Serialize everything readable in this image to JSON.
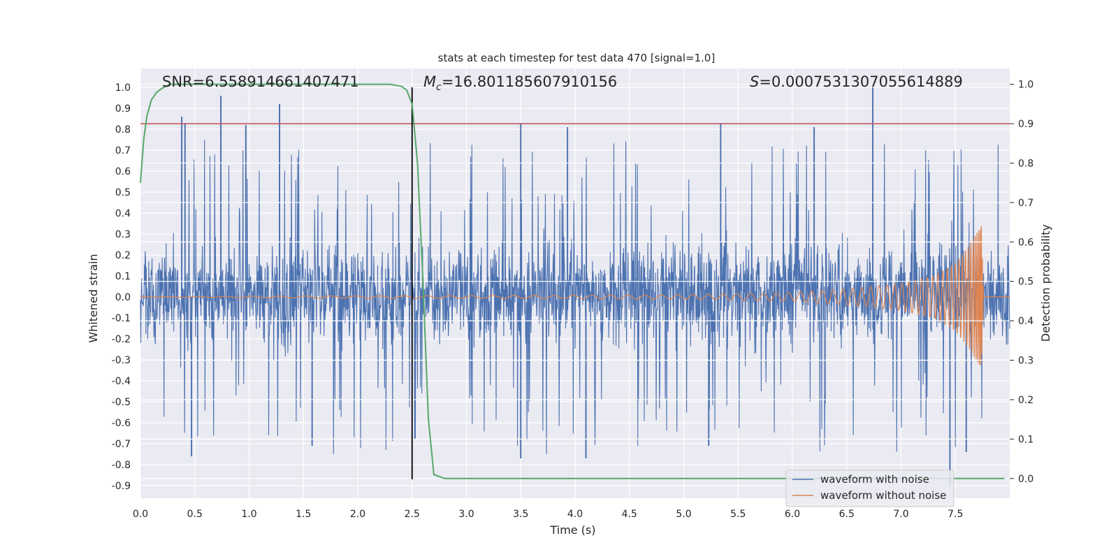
{
  "chart_data": {
    "type": "line",
    "title": "stats at each timestep for test data 470 [signal=1.0]",
    "xlabel": "Time (s)",
    "ylabel": "Whitened strain",
    "y2label": "Detection probability",
    "xlim": [
      0.0,
      8.0
    ],
    "ylim": [
      -0.96,
      1.09
    ],
    "y2lim": [
      -0.05,
      1.04
    ],
    "x_ticks": [
      "0.0",
      "0.5",
      "1.0",
      "1.5",
      "2.0",
      "2.5",
      "3.0",
      "3.5",
      "4.0",
      "4.5",
      "5.0",
      "5.5",
      "6.0",
      "6.5",
      "7.0",
      "7.5"
    ],
    "y_ticks": [
      "1.0",
      "0.9",
      "0.8",
      "0.7",
      "0.6",
      "0.5",
      "0.4",
      "0.3",
      "0.2",
      "0.1",
      "0.0",
      "-0.1",
      "-0.2",
      "-0.3",
      "-0.4",
      "-0.5",
      "-0.6",
      "-0.7",
      "-0.8",
      "-0.9"
    ],
    "y2_ticks": [
      "1.0",
      "0.9",
      "0.8",
      "0.7",
      "0.6",
      "0.5",
      "0.4",
      "0.3",
      "0.2",
      "0.1",
      "0.0"
    ],
    "annotations": {
      "snr": "SNR=6.558914661407471",
      "mc_symbol": "M",
      "mc_sub": "c",
      "mc_value": "=16.801185607910156",
      "s_symbol": "S",
      "s_value": "=0.0007531307055614889"
    },
    "threshold": {
      "value": 0.9,
      "axis": "right",
      "color": "#c44e52"
    },
    "marker_time": {
      "x": 2.5,
      "y_from": -0.87,
      "y_to": 1.0,
      "color": "#000000"
    },
    "series": [
      {
        "name": "waveform with noise",
        "color": "#4c72b0",
        "axis": "left",
        "description_note": "dense noise trace, envelope roughly -0.76..1.0",
        "peaks_high": [
          [
            0.38,
            0.86
          ],
          [
            0.41,
            0.83
          ],
          [
            0.74,
            0.96
          ],
          [
            0.97,
            0.82
          ],
          [
            1.28,
            0.92
          ],
          [
            3.5,
            0.83
          ],
          [
            3.93,
            0.81
          ],
          [
            5.34,
            0.83
          ],
          [
            6.2,
            0.81
          ],
          [
            6.74,
            1.0
          ]
        ],
        "peaks_low": [
          [
            0.47,
            -0.76
          ],
          [
            1.58,
            -0.71
          ],
          [
            3.5,
            -0.77
          ],
          [
            4.1,
            -0.77
          ],
          [
            5.23,
            -0.71
          ],
          [
            7.45,
            -0.9
          ],
          [
            7.6,
            -0.74
          ]
        ]
      },
      {
        "name": "waveform without noise",
        "color": "#dd8452",
        "axis": "left",
        "points": [
          [
            0.0,
            0.0
          ],
          [
            1.0,
            0.004
          ],
          [
            2.0,
            0.005
          ],
          [
            3.0,
            0.006
          ],
          [
            4.0,
            0.008
          ],
          [
            5.0,
            0.011
          ],
          [
            5.5,
            0.016
          ],
          [
            6.0,
            0.022
          ],
          [
            6.5,
            0.038
          ],
          [
            7.0,
            0.065
          ],
          [
            7.3,
            0.1
          ],
          [
            7.5,
            0.16
          ],
          [
            7.62,
            0.24
          ],
          [
            7.7,
            0.31
          ],
          [
            7.74,
            0.34
          ],
          [
            7.76,
            0.0
          ],
          [
            8.0,
            0.0
          ]
        ]
      },
      {
        "name": "Detection probability",
        "color": "#55a868",
        "axis": "right",
        "x": [
          0.0,
          0.03,
          0.06,
          0.1,
          0.15,
          0.2,
          0.27,
          0.35,
          0.5,
          1.0,
          1.5,
          2.0,
          2.3,
          2.4,
          2.45,
          2.5,
          2.55,
          2.6,
          2.65,
          2.7,
          2.8,
          2.9,
          3.0,
          4.0,
          5.0,
          6.0,
          7.0,
          7.5,
          7.95
        ],
        "y": [
          0.75,
          0.86,
          0.92,
          0.96,
          0.98,
          0.99,
          1.0,
          1.0,
          1.0,
          1.0,
          1.0,
          1.0,
          1.0,
          0.995,
          0.985,
          0.95,
          0.8,
          0.5,
          0.15,
          0.01,
          0.0,
          0.0,
          0.0,
          0.0,
          0.0,
          0.0,
          0.0,
          0.0,
          0.0
        ]
      }
    ],
    "legend": {
      "position": "bottom-right",
      "entries": [
        "waveform with noise",
        "waveform without noise"
      ]
    }
  }
}
